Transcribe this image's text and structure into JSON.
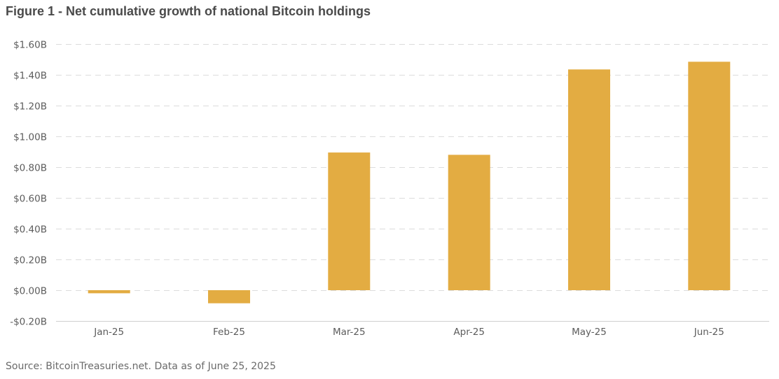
{
  "title": "Figure 1 - Net cumulative growth of national Bitcoin holdings",
  "source": "Source: BitcoinTreasuries.net. Data as of June 25, 2025",
  "bar_color": "#E3AC42",
  "chart_data": {
    "type": "bar",
    "title": "Figure 1 - Net cumulative growth of national Bitcoin holdings",
    "xlabel": "",
    "ylabel": "",
    "categories": [
      "Jan-25",
      "Feb-25",
      "Mar-25",
      "Apr-25",
      "May-25",
      "Jun-25"
    ],
    "values": [
      -0.02,
      -0.085,
      0.895,
      0.88,
      1.435,
      1.485
    ],
    "value_unit": "USD billions",
    "ylim": [
      -0.2,
      1.6
    ],
    "y_ticks": [
      -0.2,
      0,
      0.2,
      0.4,
      0.6,
      0.8,
      1.0,
      1.2,
      1.4,
      1.6
    ],
    "y_tick_labels": [
      "-$0.20B",
      "$0.00B",
      "$0.20B",
      "$0.40B",
      "$0.60B",
      "$0.80B",
      "$1.00B",
      "$1.20B",
      "$1.40B",
      "$1.60B"
    ],
    "grid": true,
    "legend": "none"
  }
}
